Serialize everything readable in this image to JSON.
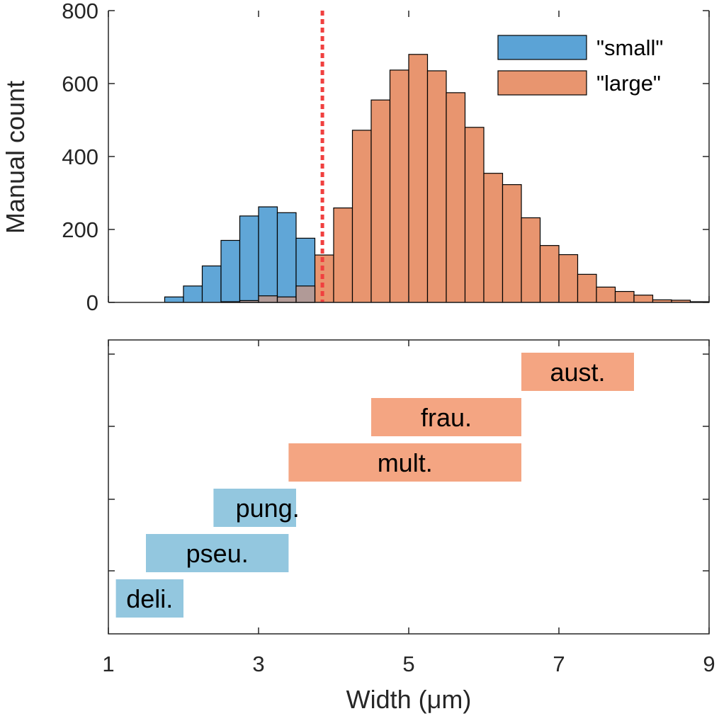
{
  "colors": {
    "small": "#5ba3d6",
    "large": "#e8956f",
    "small_range": "#93c7df",
    "large_range": "#f4a582",
    "threshold": "#f0403f",
    "axis": "#262626"
  },
  "chart_data": [
    {
      "type": "bar",
      "subtype": "overlapping-histogram",
      "title": "",
      "ylabel": "Manual count",
      "xlim": [
        1,
        9
      ],
      "ylim": [
        0,
        800
      ],
      "yticks": [
        0,
        200,
        400,
        600,
        800
      ],
      "ytick_labels": [
        "0",
        "200",
        "400",
        "600",
        "800"
      ],
      "bin_edges": [
        1.0,
        1.25,
        1.5,
        1.75,
        2.0,
        2.25,
        2.5,
        2.75,
        3.0,
        3.25,
        3.5,
        3.75,
        4.0,
        4.25,
        4.5,
        4.75,
        5.0,
        5.25,
        5.5,
        5.75,
        6.0,
        6.25,
        6.5,
        6.75,
        7.0,
        7.25,
        7.5,
        7.75,
        8.0,
        8.25,
        8.5,
        8.75,
        9.0
      ],
      "threshold_x": 3.85,
      "legend_position": "top-right",
      "series": [
        {
          "name": "\"small\"",
          "values": [
            0,
            0,
            0,
            15,
            45,
            100,
            170,
            237,
            262,
            246,
            176,
            0,
            0,
            0,
            0,
            0,
            0,
            0,
            0,
            0,
            0,
            0,
            0,
            0,
            0,
            0,
            0,
            0,
            0,
            0,
            0,
            0
          ]
        },
        {
          "name": "\"large\"",
          "values": [
            0,
            0,
            0,
            0,
            0,
            0,
            2,
            5,
            18,
            15,
            45,
            130,
            259,
            472,
            555,
            637,
            680,
            635,
            575,
            480,
            354,
            323,
            232,
            156,
            131,
            77,
            42,
            30,
            20,
            7,
            6,
            2
          ]
        }
      ]
    },
    {
      "type": "range",
      "xlabel": "Width (μm)",
      "xlim": [
        1,
        9
      ],
      "xticks": [
        1,
        3,
        5,
        7,
        9
      ],
      "xtick_labels": [
        "1",
        "3",
        "5",
        "7",
        "9"
      ],
      "ranges": [
        {
          "label": "deli.",
          "start": 1.1,
          "end": 2.0,
          "group": "small"
        },
        {
          "label": "pseu.",
          "start": 1.5,
          "end": 3.4,
          "group": "small"
        },
        {
          "label": "pung.",
          "start": 2.4,
          "end": 3.5,
          "group": "small"
        },
        {
          "label": "mult.",
          "start": 3.4,
          "end": 6.5,
          "group": "large"
        },
        {
          "label": "frau.",
          "start": 4.5,
          "end": 6.5,
          "group": "large"
        },
        {
          "label": "aust.",
          "start": 6.5,
          "end": 8.0,
          "group": "large"
        }
      ]
    }
  ]
}
